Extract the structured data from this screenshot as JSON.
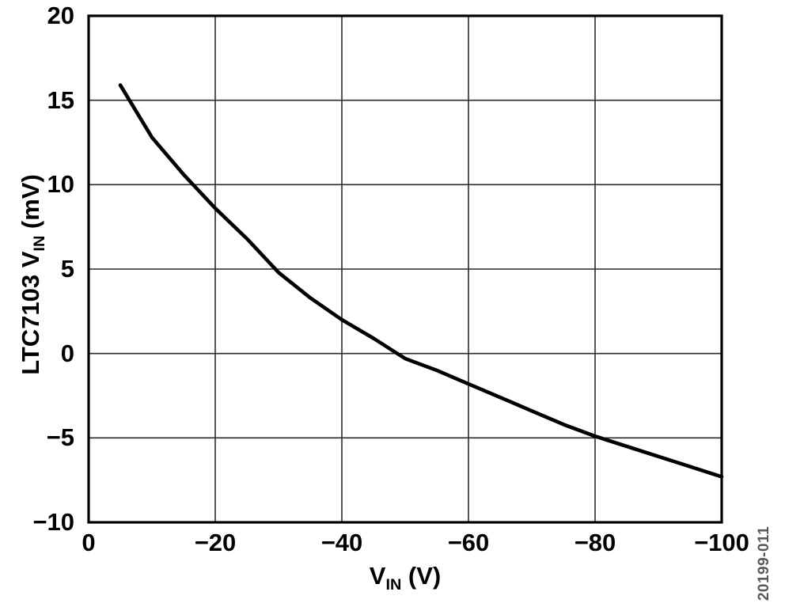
{
  "figure": {
    "watermark": "20199-011",
    "colors": {
      "background": "#ffffff",
      "axis_frame": "#000000",
      "grid": "#2a2a2a",
      "curve": "#000000",
      "watermark": "#58595b"
    }
  },
  "y_axis": {
    "title_prefix": "LTC7103 V",
    "title_sub": "IN",
    "title_suffix": " (mV)",
    "tick_labels": [
      "20",
      "15",
      "10",
      "5",
      "0",
      "−5",
      "−10"
    ]
  },
  "x_axis": {
    "title_prefix": "V",
    "title_sub": "IN",
    "title_suffix": " (V)",
    "tick_labels": [
      "0",
      "−20",
      "−40",
      "−60",
      "−80",
      "−100"
    ]
  },
  "chart_data": {
    "type": "line",
    "title": "",
    "xlabel": "VIN (V)",
    "ylabel": "LTC7103 VIN (mV)",
    "xlim": [
      0,
      -100
    ],
    "ylim": [
      -10,
      20
    ],
    "x_ticks": [
      0,
      -20,
      -40,
      -60,
      -80,
      -100
    ],
    "y_ticks": [
      20,
      15,
      10,
      5,
      0,
      -5,
      -10
    ],
    "grid": true,
    "legend": "none",
    "series": [
      {
        "name": "LTC7103 VIN reading vs VIN",
        "x": [
          -5,
          -10,
          -15,
          -20,
          -25,
          -30,
          -35,
          -40,
          -45,
          -50,
          -55,
          -60,
          -65,
          -70,
          -75,
          -80,
          -85,
          -90,
          -95,
          -100
        ],
        "y": [
          15.9,
          12.8,
          10.6,
          8.6,
          6.8,
          4.8,
          3.3,
          2.0,
          0.9,
          -0.3,
          -1.0,
          -1.8,
          -2.6,
          -3.4,
          -4.2,
          -4.9,
          -5.5,
          -6.1,
          -6.7,
          -7.3
        ]
      }
    ]
  }
}
